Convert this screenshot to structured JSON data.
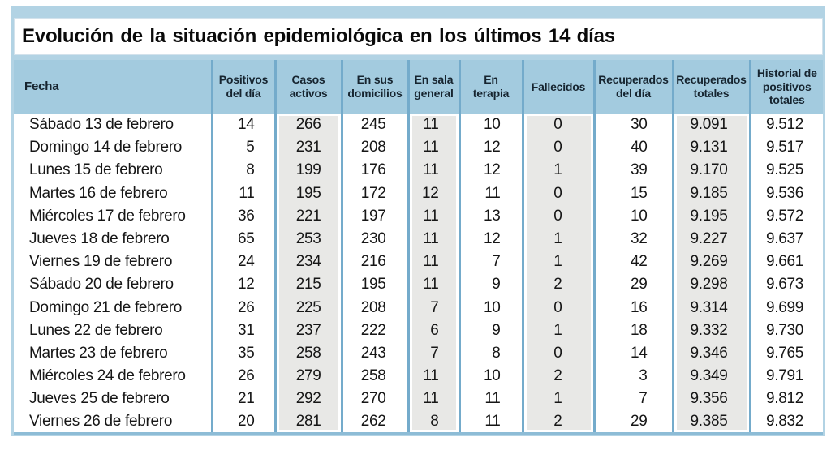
{
  "chart_data": {
    "type": "table",
    "title": "Evolución de la situación epidemiológica en los últimos 14 días",
    "columns": [
      {
        "label": "Fecha",
        "shaded": false
      },
      {
        "label": "Positivos\ndel día",
        "shaded": false
      },
      {
        "label": "Casos\nactivos",
        "shaded": true
      },
      {
        "label": "En sus\ndomicilios",
        "shaded": false
      },
      {
        "label": "En sala\ngeneral",
        "shaded": true
      },
      {
        "label": "En\nterapia",
        "shaded": false
      },
      {
        "label": "Fallecidos",
        "shaded": true
      },
      {
        "label": "Recuperados\ndel día",
        "shaded": false
      },
      {
        "label": "Recuperados\ntotales",
        "shaded": true
      },
      {
        "label": "Historial de\npositivos\ntotales",
        "shaded": false
      }
    ],
    "rows": [
      [
        "Sábado 13 de febrero",
        "14",
        "266",
        "245",
        "11",
        "10",
        "0",
        "30",
        "9.091",
        "9.512"
      ],
      [
        "Domingo 14 de febrero",
        "5",
        "231",
        "208",
        "11",
        "12",
        "0",
        "40",
        "9.131",
        "9.517"
      ],
      [
        "Lunes 15 de febrero",
        "8",
        "199",
        "176",
        "11",
        "12",
        "1",
        "39",
        "9.170",
        "9.525"
      ],
      [
        "Martes 16 de febrero",
        "11",
        "195",
        "172",
        "12",
        "11",
        "0",
        "15",
        "9.185",
        "9.536"
      ],
      [
        "Miércoles 17 de febrero",
        "36",
        "221",
        "197",
        "11",
        "13",
        "0",
        "10",
        "9.195",
        "9.572"
      ],
      [
        "Jueves 18 de febrero",
        "65",
        "253",
        "230",
        "11",
        "12",
        "1",
        "32",
        "9.227",
        "9.637"
      ],
      [
        "Viernes 19 de febrero",
        "24",
        "234",
        "216",
        "11",
        "7",
        "1",
        "42",
        "9.269",
        "9.661"
      ],
      [
        "Sábado 20 de febrero",
        "12",
        "215",
        "195",
        "11",
        "9",
        "2",
        "29",
        "9.298",
        "9.673"
      ],
      [
        "Domingo 21 de febrero",
        "26",
        "225",
        "208",
        "7",
        "10",
        "0",
        "16",
        "9.314",
        "9.699"
      ],
      [
        "Lunes 22 de febrero",
        "31",
        "237",
        "222",
        "6",
        "9",
        "1",
        "18",
        "9.332",
        "9.730"
      ],
      [
        "Martes 23 de febrero",
        "35",
        "258",
        "243",
        "7",
        "8",
        "0",
        "14",
        "9.346",
        "9.765"
      ],
      [
        "Miércoles 24 de febrero",
        "26",
        "279",
        "258",
        "11",
        "10",
        "2",
        "3",
        "9.349",
        "9.791"
      ],
      [
        "Jueves 25 de febrero",
        "21",
        "292",
        "270",
        "11",
        "11",
        "1",
        "7",
        "9.356",
        "9.812"
      ],
      [
        "Viernes 26 de febrero",
        "20",
        "281",
        "262",
        "8",
        "11",
        "2",
        "29",
        "9.385",
        "9.832"
      ]
    ]
  },
  "colors": {
    "frame": "#b2d3e4",
    "header_cell": "#a3cbdf",
    "separator": "#74abcb",
    "bottom_border": "#8dbcd6",
    "shaded_column": "#e8e8e6",
    "title_text": "#0a0a0a",
    "header_text": "#16242f",
    "body_text": "#161616"
  }
}
